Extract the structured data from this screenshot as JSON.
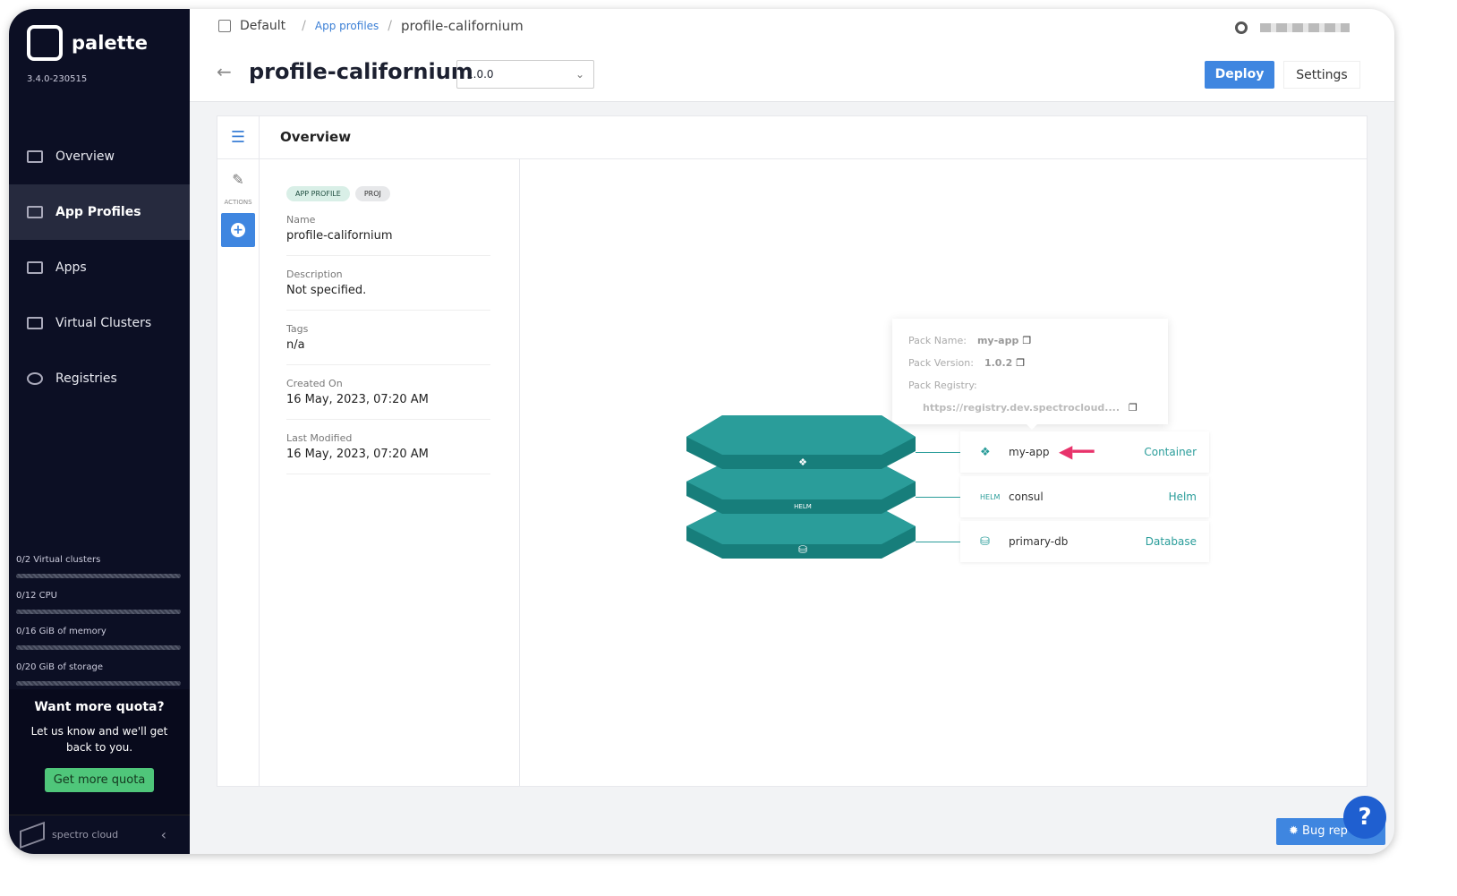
{
  "sidebar": {
    "brand": "palette",
    "version": "3.4.0-230515",
    "items": [
      {
        "label": "Overview",
        "icon": "chart-icon"
      },
      {
        "label": "App Profiles",
        "icon": "layers-icon",
        "active": true
      },
      {
        "label": "Apps",
        "icon": "server-icon"
      },
      {
        "label": "Virtual Clusters",
        "icon": "cluster-icon"
      },
      {
        "label": "Registries",
        "icon": "gear-icon"
      }
    ],
    "quota": [
      {
        "label": "0/2 Virtual clusters",
        "usage": 0
      },
      {
        "label": "0/12 CPU",
        "usage": 0
      },
      {
        "label": "0/16 GiB of memory",
        "usage": 0
      },
      {
        "label": "0/20 GiB of storage",
        "usage": 0
      }
    ],
    "more_title": "Want more quota?",
    "more_text": "Let us know and we'll get back to you.",
    "more_button": "Get more quota",
    "footer": "spectro cloud"
  },
  "header": {
    "breadcrumb": [
      "Default",
      "App profiles",
      "profile-californium"
    ],
    "title": "profile-californium",
    "version": "1.0.0",
    "deploy": "Deploy",
    "settings": "Settings"
  },
  "rail": {
    "actions": "ACTIONS"
  },
  "panel": {
    "title": "Overview",
    "tags": [
      "APP PROFILE",
      "PROJ"
    ],
    "fields": [
      {
        "k": "Name",
        "v": "profile-californium"
      },
      {
        "k": "Description",
        "v": "Not specified."
      },
      {
        "k": "Tags",
        "v": "n/a"
      },
      {
        "k": "Created On",
        "v": "16 May, 2023, 07:20 AM"
      },
      {
        "k": "Last Modified",
        "v": "16 May, 2023, 07:20 AM"
      }
    ]
  },
  "tooltip": {
    "name_label": "Pack Name:",
    "name": "my-app",
    "version_label": "Pack Version:",
    "version": "1.0.2",
    "registry_label": "Pack Registry:",
    "registry": "https://registry.dev.spectrocloud...."
  },
  "packs": [
    {
      "name": "my-app",
      "type": "Container",
      "icon": "container-icon"
    },
    {
      "name": "consul",
      "type": "Helm",
      "icon": "helm-icon"
    },
    {
      "name": "primary-db",
      "type": "Database",
      "icon": "database-icon"
    }
  ],
  "colors": {
    "accent": "#3f86e0",
    "teal": "#2a9d9a",
    "sidebar": "#0c0f24",
    "arrow": "#e8336b"
  },
  "bug_report": "Bug rep",
  "help": "?"
}
